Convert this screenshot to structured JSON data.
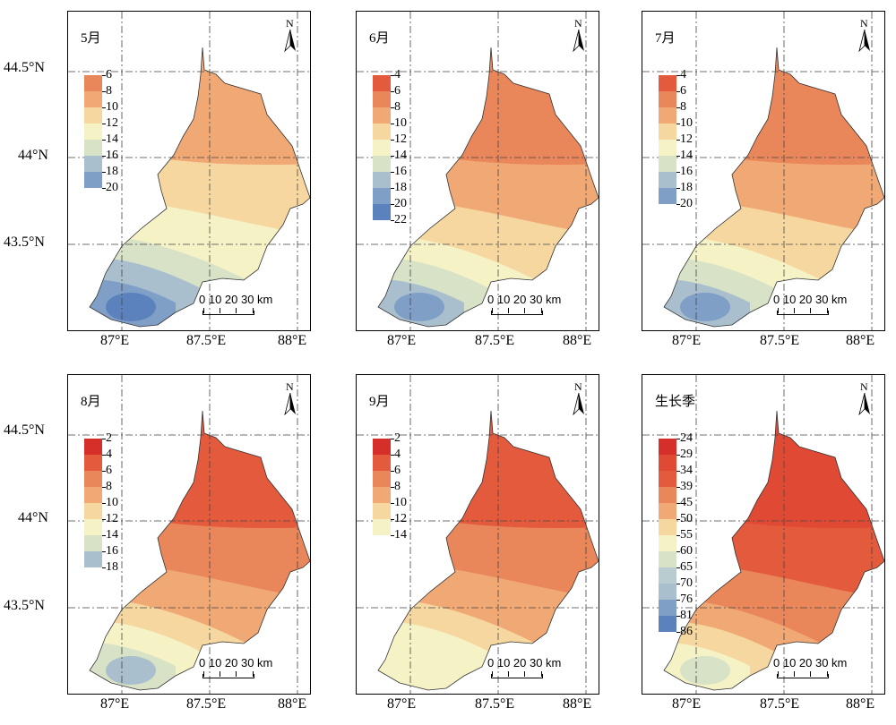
{
  "y_axis_labels": [
    "44.5°N",
    "44°N",
    "43.5°N"
  ],
  "x_axis_labels": [
    "87°E",
    "87.5°E",
    "88°E"
  ],
  "north_label": "N",
  "scale_label": "0 10 20 30 km",
  "panels": [
    {
      "title": "5月",
      "legend": [
        "6",
        "8",
        "10",
        "12",
        "14",
        "16",
        "18",
        "20"
      ],
      "colors": [
        "#e9875a",
        "#f0a875",
        "#f6d79f",
        "#f5f2c6",
        "#d8e2c6",
        "#a9bfcd",
        "#7f9fc7",
        "#5b82bd"
      ]
    },
    {
      "title": "6月",
      "legend": [
        "4",
        "6",
        "8",
        "10",
        "12",
        "14",
        "16",
        "18",
        "20",
        "22"
      ],
      "colors": [
        "#e45a3c",
        "#e9875a",
        "#f0a875",
        "#f6d79f",
        "#f5f2c6",
        "#d8e2c6",
        "#a9bfcd",
        "#7f9fc7",
        "#5b82bd",
        "#3d6cb1"
      ]
    },
    {
      "title": "7月",
      "legend": [
        "4",
        "6",
        "8",
        "10",
        "12",
        "14",
        "16",
        "18",
        "20"
      ],
      "colors": [
        "#e45a3c",
        "#e9875a",
        "#f0a875",
        "#f6d79f",
        "#f5f2c6",
        "#d8e2c6",
        "#a9bfcd",
        "#7f9fc7",
        "#5b82bd"
      ]
    },
    {
      "title": "8月",
      "legend": [
        "2",
        "4",
        "6",
        "8",
        "10",
        "12",
        "14",
        "16",
        "18"
      ],
      "colors": [
        "#d62f2a",
        "#e45a3c",
        "#e9875a",
        "#f0a875",
        "#f6d79f",
        "#f5f2c6",
        "#d8e2c6",
        "#a9bfcd",
        "#a9bfcd"
      ]
    },
    {
      "title": "9月",
      "legend": [
        "2",
        "4",
        "6",
        "8",
        "10",
        "12",
        "14"
      ],
      "colors": [
        "#d62f2a",
        "#e45a3c",
        "#e9875a",
        "#f0a875",
        "#f6d79f",
        "#f5f2c6",
        "#f5f2c6"
      ]
    },
    {
      "title": "生长季",
      "legend": [
        "24",
        "29",
        "34",
        "39",
        "45",
        "50",
        "55",
        "60",
        "65",
        "70",
        "76",
        "81",
        "86"
      ],
      "colors": [
        "#d62f2a",
        "#e04a35",
        "#e45a3c",
        "#e9875a",
        "#f0a875",
        "#f6d79f",
        "#f5f2c6",
        "#d8e2c6",
        "#b9cdd0",
        "#a9bfcd",
        "#7f9fc7",
        "#5b82bd",
        "#3d6cb1"
      ]
    }
  ]
}
